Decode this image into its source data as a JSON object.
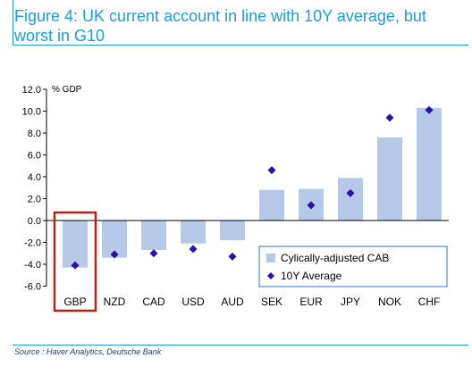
{
  "figure": {
    "title_line1": "Figure 4: UK current account in line with 10Y average, but",
    "title_line2": "worst in G10",
    "source": "Source : Haver Analytics, Deutsche Bank"
  },
  "colors": {
    "title": "#1f9bd7",
    "bar": "#b7c9e8",
    "marker": "#2b0fa6",
    "highlight": "#b3231c",
    "text": "#000000"
  },
  "chart_data": {
    "type": "bar",
    "ylabel": "% GDP",
    "ylim": [
      -6.0,
      12.0
    ],
    "yticks": [
      "12.0",
      "10.0",
      "8.0",
      "6.0",
      "4.0",
      "2.0",
      "0.0",
      "-2.0",
      "-4.0",
      "-6.0"
    ],
    "categories": [
      "GBP",
      "NZD",
      "CAD",
      "USD",
      "AUD",
      "SEK",
      "EUR",
      "JPY",
      "NOK",
      "CHF"
    ],
    "highlighted_category": "GBP",
    "series": [
      {
        "name": "Cylically-adjusted CAB",
        "kind": "bar",
        "values": [
          -4.3,
          -3.4,
          -2.7,
          -2.1,
          -1.8,
          2.8,
          2.9,
          3.9,
          7.6,
          10.3
        ]
      },
      {
        "name": "10Y Average",
        "kind": "marker",
        "values": [
          -4.1,
          -3.1,
          -3.0,
          -2.6,
          -3.3,
          4.6,
          1.4,
          2.5,
          9.4,
          10.1
        ]
      }
    ],
    "legend_position": "lower-right",
    "grid": false
  }
}
